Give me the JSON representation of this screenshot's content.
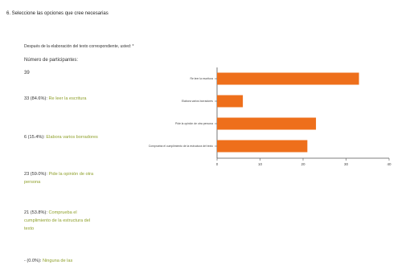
{
  "question": {
    "title": "6. Seleccione las opciones que cree necesarias",
    "prompt": "Después de la elaboración del texto correspondiente, usted: *"
  },
  "summary": {
    "count_label": "Número de participantes:",
    "count_value": "39",
    "stats": [
      {
        "count": "33 (84.6%):",
        "text": "Re leer la escritura"
      },
      {
        "count": "6 (15.4%):",
        "text": "Elabora varios borradores"
      },
      {
        "count": "23 (59.0%):",
        "text": "Pide la opinión de otra persona"
      },
      {
        "count": "21 (53.8%):",
        "text": "Comprueba el cumplimiento de la estructura del texto"
      },
      {
        "count": "- (0.0%):",
        "text": "Ninguna de las"
      }
    ]
  },
  "chart_data": {
    "type": "bar",
    "orientation": "horizontal",
    "categories": [
      "Re leer la escritura",
      "Elabora varios borradores",
      "Pide la opinión de otra persona",
      "Comprueba el cumplimiento de la estructura del texto"
    ],
    "values": [
      33,
      6,
      23,
      21
    ],
    "xlim": [
      0,
      40
    ],
    "ticks": [
      0,
      10,
      20,
      30,
      40
    ],
    "bar_color": "#ee6f1b",
    "axis_color": "#555555",
    "grid": false
  }
}
